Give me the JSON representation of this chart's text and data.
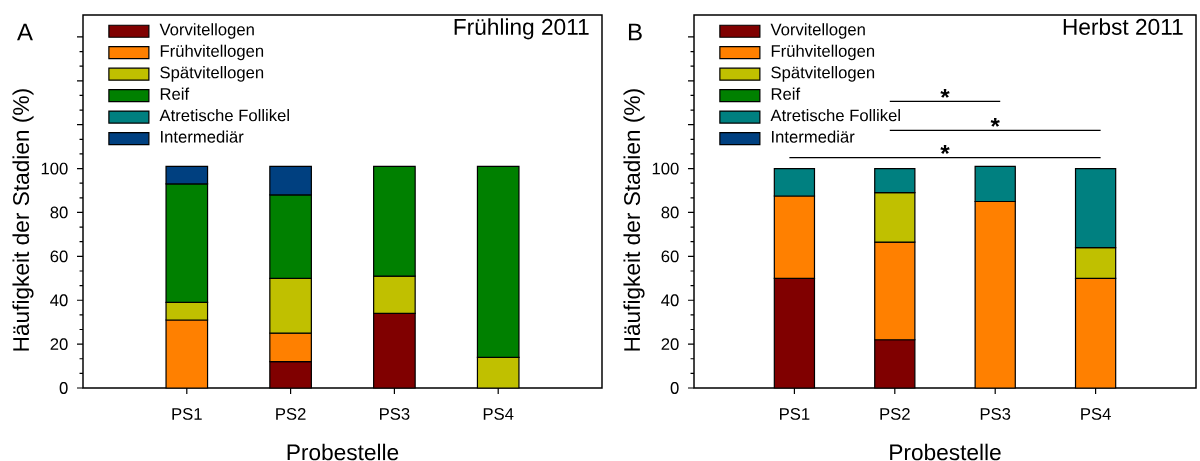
{
  "chart_data": [
    {
      "type": "bar",
      "title": "Frühling 2011",
      "xlabel": "Probestelle",
      "ylabel": "Häufigkeit der Stadien (%)",
      "annotations": [
        "A"
      ],
      "categories": [
        "PS1",
        "PS2",
        "PS3",
        "PS4"
      ],
      "stacked": true,
      "legend": "top left",
      "ylim": [
        0,
        170
      ],
      "yticks": [
        0,
        20,
        40,
        60,
        80,
        100,
        {
          "value": 120,
          "label": null
        },
        {
          "value": 140,
          "label": null
        },
        {
          "value": 160,
          "label": null
        }
      ],
      "series": [
        {
          "name": "Vorvitellogen",
          "color": "#800000",
          "values": [
            0,
            12,
            34,
            0
          ]
        },
        {
          "name": "Frühvitellogen",
          "color": "#ff8000",
          "values": [
            31,
            13,
            0,
            0
          ]
        },
        {
          "name": "Spätvitellogen",
          "color": "#c0c000",
          "values": [
            8,
            25,
            17,
            14
          ]
        },
        {
          "name": "Reif",
          "color": "#008000",
          "values": [
            54,
            38,
            50,
            87
          ]
        },
        {
          "name": "Atretische Follikel",
          "color": "#008080",
          "values": [
            0,
            0,
            0,
            0
          ]
        },
        {
          "name": "Intermediär",
          "color": "#004080",
          "values": [
            8,
            13,
            0,
            0
          ]
        }
      ]
    },
    {
      "type": "bar",
      "title": "Herbst 2011",
      "xlabel": "Probestelle",
      "ylabel": "Häufigkeit der Stadien (%)",
      "annotations": [
        "B",
        "*",
        "*",
        "*"
      ],
      "categories": [
        "PS1",
        "PS2",
        "PS3",
        "PS4"
      ],
      "stacked": true,
      "legend": "top left",
      "ylim": [
        0,
        170
      ],
      "yticks": [
        0,
        20,
        40,
        60,
        80,
        100,
        {
          "value": 120,
          "label": null
        },
        {
          "value": 140,
          "label": null
        },
        {
          "value": 160,
          "label": null
        }
      ],
      "series": [
        {
          "name": "Vorvitellogen",
          "color": "#800000",
          "values": [
            50,
            22,
            0,
            0
          ]
        },
        {
          "name": "Frühvitellogen",
          "color": "#ff8000",
          "values": [
            37.5,
            44.5,
            85,
            50
          ]
        },
        {
          "name": "Spätvitellogen",
          "color": "#c0c000",
          "values": [
            0,
            22.5,
            0,
            14
          ]
        },
        {
          "name": "Reif",
          "color": "#008000",
          "values": [
            0,
            0,
            0,
            0
          ]
        },
        {
          "name": "Atretische Follikel",
          "color": "#008080",
          "values": [
            12.5,
            11,
            16,
            36
          ]
        },
        {
          "name": "Intermediär",
          "color": "#004080",
          "values": [
            0,
            0,
            0,
            0
          ]
        }
      ]
    }
  ]
}
